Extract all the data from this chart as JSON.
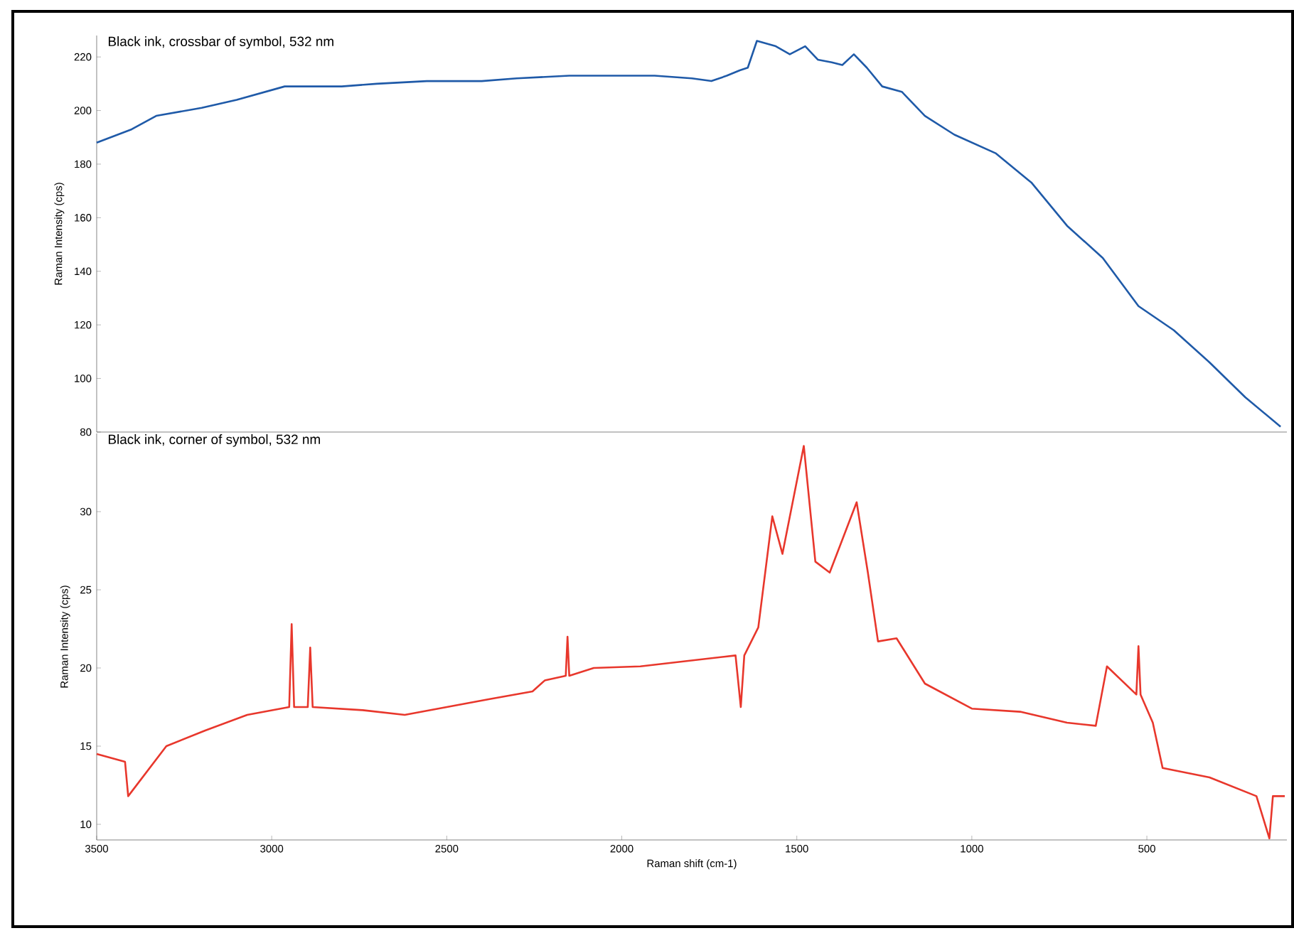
{
  "chart_data": [
    {
      "type": "line",
      "title": "Black ink, crossbar of symbol, 532 nm",
      "ylabel": "Raman Intensity (cps)",
      "color": "#1f5aa8",
      "tick_labels": "y",
      "xlim": [
        3500,
        100
      ],
      "ylim": [
        80,
        228
      ],
      "xticks": [
        3500,
        3000,
        2500,
        2000,
        1500,
        1000,
        500
      ],
      "yticks": [
        80,
        100,
        120,
        140,
        160,
        180,
        200,
        220
      ],
      "x": [
        3500,
        3400,
        3330,
        3200,
        3100,
        2963,
        2800,
        2700,
        2557,
        2400,
        2300,
        2150,
        2000,
        1906,
        1800,
        1744,
        1700,
        1663,
        1640,
        1614,
        1560,
        1520,
        1476,
        1440,
        1400,
        1370,
        1337,
        1300,
        1256,
        1200,
        1134,
        1050,
        931,
        829,
        728,
        626,
        524,
        423,
        321,
        219,
        118
      ],
      "values": [
        188,
        193,
        198,
        201,
        204,
        209,
        209,
        210,
        211,
        211,
        212,
        213,
        213,
        213,
        212,
        211,
        213,
        215,
        216,
        226,
        224,
        221,
        224,
        219,
        218,
        217,
        221,
        216,
        209,
        207,
        198,
        191,
        184,
        173,
        157,
        145,
        127,
        118,
        106,
        93,
        82
      ]
    },
    {
      "type": "line",
      "title": "Black ink, corner of symbol, 532 nm",
      "ylabel": "Raman Intensity (cps)",
      "xlabel": "Raman shift (cm-1)",
      "color": "#e8372c",
      "xlim": [
        3500,
        100
      ],
      "ylim": [
        9,
        35
      ],
      "xticks": [
        3500,
        3000,
        2500,
        2000,
        1500,
        1000,
        500
      ],
      "yticks": [
        10,
        15,
        20,
        25,
        30
      ],
      "x": [
        3500,
        3419,
        3410,
        3301,
        3190,
        3070,
        2950,
        2943,
        2936,
        2897,
        2890,
        2883,
        2740,
        2620,
        2500,
        2380,
        2255,
        2220,
        2160,
        2155,
        2150,
        2080,
        1947,
        1675,
        1660,
        1650,
        1610,
        1570,
        1541,
        1480,
        1447,
        1406,
        1329,
        1297,
        1268,
        1215,
        1134,
        1000,
        862,
        728,
        646,
        614,
        530,
        524,
        518,
        483,
        455,
        321,
        187,
        150,
        140,
        106
      ],
      "values": [
        14.5,
        14,
        11.8,
        15,
        16,
        17,
        17.5,
        22.8,
        17.5,
        17.5,
        21.3,
        17.5,
        17.3,
        17,
        17.5,
        18,
        18.5,
        19.2,
        19.5,
        22,
        19.5,
        20,
        20.1,
        20.8,
        17.5,
        20.8,
        22.6,
        29.7,
        27.3,
        34.2,
        26.8,
        26.1,
        30.6,
        26.1,
        21.7,
        21.9,
        19,
        17.4,
        17.2,
        16.5,
        16.3,
        20.1,
        18.3,
        21.4,
        18.3,
        16.5,
        13.6,
        13,
        11.8,
        9.1,
        11.8,
        11.8
      ]
    }
  ]
}
